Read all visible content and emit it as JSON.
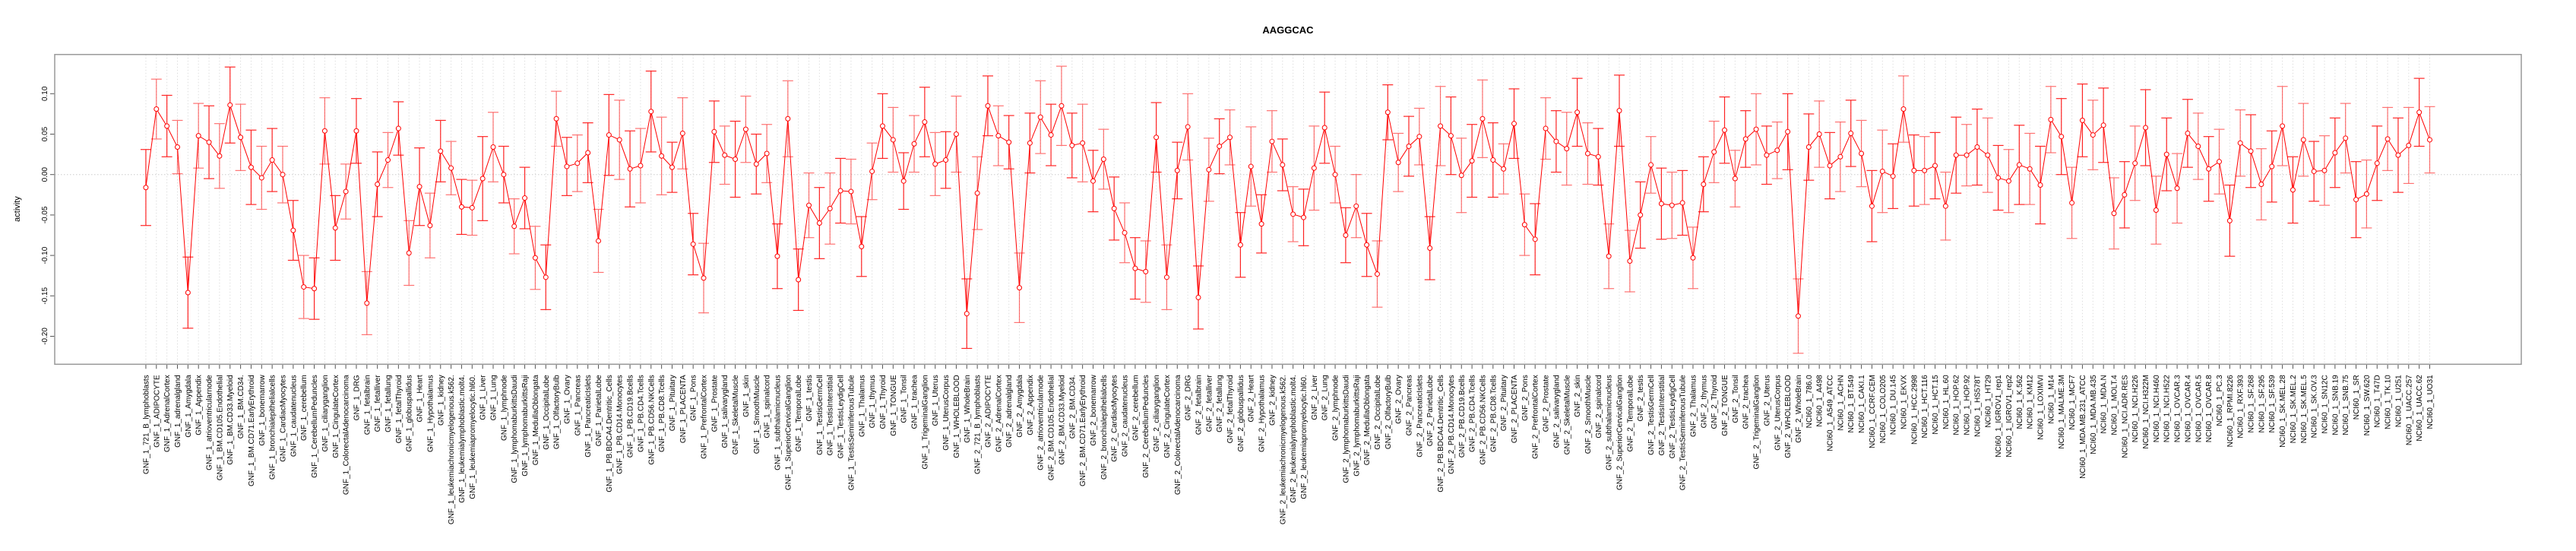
{
  "chart_data": {
    "type": "line",
    "title": "AAGGCAC",
    "xlabel": "",
    "ylabel": "activity",
    "ylim": [
      -0.2346,
      0.1485
    ],
    "xlim": [
      -7.66,
      226.7
    ],
    "yticks": [
      -0.2,
      -0.15,
      -0.1,
      -0.05,
      0.0,
      0.05,
      0.1
    ],
    "ytick_labels": [
      "-0.20",
      "-0.15",
      "-0.10",
      "-0.05",
      "0.00",
      "0.05",
      "0.10"
    ],
    "grid": "dotted vertical lines at each category; dotted horizontal line at 0",
    "legend": "none",
    "color": "#ff0000",
    "categories": [
      "GNF_1_721_B_lymphoblasts",
      "GNF_1_ADIPOCYTE",
      "GNF_1_AdrenalCortex",
      "GNF_1_adrenalgland",
      "GNF_1_Amygdala",
      "GNF_1_Appendix",
      "GNF_1_atrioventricularnode",
      "GNF_1_BM.CD105.Endothelial",
      "GNF_1_BM.CD33.Myeloid",
      "GNF_1_BM.CD34.",
      "GNF_1_BM.CD71.EarlyErythroid",
      "GNF_1_bonemarrow",
      "GNF_1_bronchialepithelialcells",
      "GNF_1_CardiacMyocytes",
      "GNF_1_caudatenucleus",
      "GNF_1_cerebellum",
      "GNF_1_CerebellumPeduncles",
      "GNF_1_ciliaryganglion",
      "GNF_1_CingulateCortex",
      "GNF_1_ColorectalAdenocarcinoma",
      "GNF_1_DRG",
      "GNF_1_fetalbrain",
      "GNF_1_fetalliver",
      "GNF_1_fetallung",
      "GNF_1_fetalThyroid",
      "GNF_1_globuspallidus",
      "GNF_1_Heart",
      "GNF_1_Hypothalamus",
      "GNF_1_kidney",
      "GNF_1_leukemiachronicmyelogenous.k562.",
      "GNF_1_leukemialymphoblastic.molt4.",
      "GNF_1_leukemiapromyelocytic.hl60.",
      "GNF_1_Liver",
      "GNF_1_Lung",
      "GNF_1_lymphnode",
      "GNF_1_lymphomaburkittsDaudi",
      "GNF_1_lymphomaburkittsRaji",
      "GNF_1_MedullaOblongata",
      "GNF_1_OccipitalLobe",
      "GNF_1_OlfactoryBulb",
      "GNF_1_Ovary",
      "GNF_1_Pancreas",
      "GNF_1_PancreaticIslets",
      "GNF_1_ParietalLobe",
      "GNF_1_PB.BDCA4.Dentritic_Cells",
      "GNF_1_PB.CD14.Monocytes",
      "GNF_1_PB.CD19.Bcells",
      "GNF_1_PB.CD4.Tcells",
      "GNF_1_PB.CD56.NKCells",
      "GNF_1_PB.CD8.Tcells",
      "GNF_1_Pituitary",
      "GNF_1_PLACENTA",
      "GNF_1_Pons",
      "GNF_1_PrefrontalCortex",
      "GNF_1_Prostate",
      "GNF_1_salivarygland",
      "GNF_1_SkeletalMuscle",
      "GNF_1_skin",
      "GNF_1_SmoothMuscle",
      "GNF_1_spinalcord",
      "GNF_1_subthalamicnucleus",
      "GNF_1_SuperiorCervicalGanglion",
      "GNF_1_TemporalLobe",
      "GNF_1_testis",
      "GNF_1_TestisGermCell",
      "GNF_1_TestisInterstitial",
      "GNF_1_TestisLeydigCell",
      "GNF_1_TestisSeminiferousTubule",
      "GNF_1_Thalamus",
      "GNF_1_thymus",
      "GNF_1_Thyroid",
      "GNF_1_TONGUE",
      "GNF_1_Tonsil",
      "GNF_1_trachea",
      "GNF_1_TrigeminalGanglion",
      "GNF_1_Uterus",
      "GNF_1_UterusCorpus",
      "GNF_1_WHOLEBLOOD",
      "GNF_1_WholeBrain",
      "GNF_2_721_B_lymphoblasts",
      "GNF_2_ADIPOCYTE",
      "GNF_2_AdrenalCortex",
      "GNF_2_adrenalgland",
      "GNF_2_Amygdala",
      "GNF_2_Appendix",
      "GNF_2_atrioventricularnode",
      "GNF_2_BM.CD105.Endothelial",
      "GNF_2_BM.CD33.Myeloid",
      "GNF_2_BM.CD34.",
      "GNF_2_BM.CD71.EarlyErythroid",
      "GNF_2_bonemarrow",
      "GNF_2_bronchialepithelialcells",
      "GNF_2_CardiacMyocytes",
      "GNF_2_caudatenucleus",
      "GNF_2_cerebellum",
      "GNF_2_CerebellumPeduncles",
      "GNF_2_ciliaryganglion",
      "GNF_2_CingulateCortex",
      "GNF_2_ColorectalAdenocarcinoma",
      "GNF_2_DRG",
      "GNF_2_fetalbrain",
      "GNF_2_fetalliver",
      "GNF_2_fetallung",
      "GNF_2_fetalThyroid",
      "GNF_2_globuspallidus",
      "GNF_2_Heart",
      "GNF_2_Hypothalamus",
      "GNF_2_kidney",
      "GNF_2_leukemiachronicmyelogenous.k562.",
      "GNF_2_leukemialymphoblastic.molt4.",
      "GNF_2_leukemiapromyelocytic.hl60.",
      "GNF_2_Liver",
      "GNF_2_Lung",
      "GNF_2_lymphnode",
      "GNF_2_lymphomaburkittsDaudi",
      "GNF_2_lymphomaburkittsRaji",
      "GNF_2_MedullaOblongata",
      "GNF_2_OccipitalLobe",
      "GNF_2_OlfactoryBulb",
      "GNF_2_Ovary",
      "GNF_2_Pancreas",
      "GNF_2_PancreaticIslets",
      "GNF_2_ParietalLobe",
      "GNF_2_PB.BDCA4.Dentritic_Cells",
      "GNF_2_PB.CD14.Monocytes",
      "GNF_2_PB.CD19.Bcells",
      "GNF_2_PB.CD4.Tcells",
      "GNF_2_PB.CD56.NKCells",
      "GNF_2_PB.CD8.Tcells",
      "GNF_2_Pituitary",
      "GNF_2_PLACENTA",
      "GNF_2_Pons",
      "GNF_2_PrefrontalCortex",
      "GNF_2_Prostate",
      "GNF_2_salivarygland",
      "GNF_2_SkeletalMuscle",
      "GNF_2_skin",
      "GNF_2_SmoothMuscle",
      "GNF_2_spinalcord",
      "GNF_2_subthalamicnucleus",
      "GNF_2_SuperiorCervicalGanglion",
      "GNF_2_TemporalLobe",
      "GNF_2_testis",
      "GNF_2_TestisGermCell",
      "GNF_2_TestisInterstitial",
      "GNF_2_TestisLeydigCell",
      "GNF_2_TestisSeminiferousTubule",
      "GNF_2_Thalamus",
      "GNF_2_thymus",
      "GNF_2_Thyroid",
      "GNF_2_TONGUE",
      "GNF_2_Tonsil",
      "GNF_2_trachea",
      "GNF_2_TrigeminalGanglion",
      "GNF_2_Uterus",
      "GNF_2_UterusCorpus",
      "GNF_2_WHOLEBLOOD",
      "GNF_2_WholeBrain",
      "NCI60_1_786.0",
      "NCI60_1_A498",
      "NCI60_1_A549_ATCC",
      "NCI60_1_ACHN",
      "NCI60_1_BT.549",
      "NCI60_1_CAKI.1",
      "NCI60_1_CCRF.CEM",
      "NCI60_1_COLO205",
      "NCI60_1_DU.145",
      "NCI60_1_EKVX",
      "NCI60_1_HCC.2998",
      "NCI60_1_HCT.116",
      "NCI60_1_HCT.15",
      "NCI60_1_HL.60",
      "NCI60_1_HOP.62",
      "NCI60_1_HOP.92",
      "NCI60_1_HS578T",
      "NCI60_1_HT29",
      "NCI60_1_IGROV1_rep1",
      "NCI60_1_IGROV1_rep2",
      "NCI60_1_K.562",
      "NCI60_1_KM12",
      "NCI60_1_LOXIMVI",
      "NCI60_1_M14",
      "NCI60_1_MALME.3M",
      "NCI60_1_MCF7",
      "NCI60_1_MDA.MB.231_ATCC",
      "NCI60_1_MDA.MB.435",
      "NCI60_1_MDA.N",
      "NCI60_1_MOLT.4",
      "NCI60_1_NCI.ADR.RES",
      "NCI60_1_NCI.H226",
      "NCI60_1_NCI.H322M",
      "NCI60_1_NCI.H460",
      "NCI60_1_NCI.H522",
      "NCI60_1_OVCAR.3",
      "NCI60_1_OVCAR.4",
      "NCI60_1_OVCAR.5",
      "NCI60_1_OVCAR.8",
      "NCI60_1_PC.3",
      "NCI60_1_RPMI.8226",
      "NCI60_1_RXF.393",
      "NCI60_1_SF.268",
      "NCI60_1_SF.295",
      "NCI60_1_SF.539",
      "NCI60_1_SK.MEL.28",
      "NCI60_1_SK.MEL.2",
      "NCI60_1_SK.MEL.5",
      "NCI60_1_SK.OV.3",
      "NCI60_1_SN12C",
      "NCI60_1_SNB.19",
      "NCI60_1_SNB.75",
      "NCI60_1_SR",
      "NCI60_1_SW.620",
      "NCI60_1_T47D",
      "NCI60_1_TK.10",
      "NCI60_1_U251",
      "NCI60_1_UACC.257",
      "NCI60_1_UACC.62",
      "NCI60_1_UO31"
    ],
    "values": [
      -0.016,
      0.081,
      0.06,
      0.034,
      -0.146,
      0.048,
      0.04,
      0.023,
      0.086,
      0.046,
      0.009,
      -0.004,
      0.018,
      0.0,
      -0.069,
      -0.139,
      -0.141,
      0.054,
      -0.066,
      -0.021,
      0.054,
      -0.159,
      -0.012,
      0.018,
      0.057,
      -0.097,
      -0.015,
      -0.063,
      0.029,
      0.008,
      -0.04,
      -0.041,
      -0.005,
      0.034,
      0.0,
      -0.064,
      -0.029,
      -0.103,
      -0.127,
      0.069,
      0.01,
      0.014,
      0.027,
      -0.082,
      0.049,
      0.043,
      0.007,
      0.011,
      0.078,
      0.023,
      0.009,
      0.051,
      -0.086,
      -0.128,
      0.053,
      0.024,
      0.019,
      0.056,
      0.013,
      0.026,
      -0.101,
      0.069,
      -0.13,
      -0.038,
      -0.06,
      -0.042,
      -0.02,
      -0.021,
      -0.089,
      0.004,
      0.06,
      0.043,
      -0.008,
      0.038,
      0.065,
      0.013,
      0.018,
      0.05,
      -0.172,
      -0.023,
      0.085,
      0.048,
      0.04,
      -0.14,
      0.039,
      0.071,
      0.049,
      0.085,
      0.036,
      0.039,
      -0.008,
      0.019,
      -0.042,
      -0.072,
      -0.116,
      -0.12,
      0.046,
      -0.127,
      0.005,
      0.059,
      -0.152,
      0.006,
      0.035,
      0.046,
      -0.087,
      0.01,
      -0.061,
      0.041,
      0.012,
      -0.049,
      -0.053,
      0.008,
      0.058,
      0.0,
      -0.075,
      -0.039,
      -0.087,
      -0.123,
      0.077,
      0.015,
      0.035,
      0.047,
      -0.091,
      0.06,
      0.048,
      -0.001,
      0.017,
      0.069,
      0.018,
      0.007,
      0.063,
      -0.062,
      -0.08,
      0.057,
      0.041,
      0.032,
      0.077,
      0.026,
      0.022,
      -0.101,
      0.079,
      -0.107,
      -0.05,
      0.012,
      -0.036,
      -0.038,
      -0.035,
      -0.103,
      -0.012,
      0.028,
      0.055,
      -0.005,
      0.044,
      0.056,
      0.024,
      0.03,
      0.053,
      -0.175,
      0.034,
      0.05,
      0.011,
      0.022,
      0.051,
      0.026,
      -0.039,
      0.004,
      -0.002,
      0.081,
      0.005,
      0.005,
      0.011,
      -0.039,
      0.024,
      0.024,
      0.034,
      0.024,
      -0.004,
      -0.008,
      0.012,
      0.007,
      -0.013,
      0.068,
      0.047,
      -0.035,
      0.067,
      0.049,
      0.061,
      -0.048,
      -0.025,
      0.014,
      0.058,
      -0.044,
      0.025,
      -0.017,
      0.051,
      0.035,
      0.007,
      0.016,
      -0.057,
      0.039,
      0.029,
      -0.012,
      0.01,
      0.06,
      -0.019,
      0.043,
      0.004,
      0.005,
      0.027,
      0.045,
      -0.031,
      -0.024,
      0.014,
      0.044,
      0.024,
      0.036,
      0.077,
      0.043
    ],
    "errors": [
      0.047,
      0.037,
      0.038,
      0.033,
      0.044,
      0.04,
      0.045,
      0.04,
      0.047,
      0.041,
      0.046,
      0.039,
      0.039,
      0.035,
      0.037,
      0.039,
      0.038,
      0.041,
      0.04,
      0.034,
      0.04,
      0.039,
      0.04,
      0.034,
      0.033,
      0.04,
      0.048,
      0.04,
      0.038,
      0.033,
      0.034,
      0.034,
      0.052,
      0.043,
      0.035,
      0.034,
      0.038,
      0.039,
      0.04,
      0.034,
      0.036,
      0.035,
      0.037,
      0.039,
      0.05,
      0.049,
      0.047,
      0.046,
      0.05,
      0.048,
      0.031,
      0.044,
      0.038,
      0.043,
      0.038,
      0.036,
      0.047,
      0.041,
      0.037,
      0.036,
      0.04,
      0.047,
      0.038,
      0.04,
      0.044,
      0.044,
      0.04,
      0.04,
      0.037,
      0.035,
      0.04,
      0.04,
      0.035,
      0.035,
      0.043,
      0.039,
      0.035,
      0.047,
      0.043,
      0.045,
      0.037,
      0.037,
      0.033,
      0.043,
      0.037,
      0.045,
      0.038,
      0.049,
      0.04,
      0.048,
      0.038,
      0.037,
      0.039,
      0.037,
      0.038,
      0.038,
      0.043,
      0.04,
      0.035,
      0.041,
      0.039,
      0.039,
      0.034,
      0.034,
      0.04,
      0.049,
      0.036,
      0.038,
      0.032,
      0.034,
      0.035,
      0.052,
      0.044,
      0.035,
      0.034,
      0.039,
      0.039,
      0.041,
      0.034,
      0.036,
      0.037,
      0.035,
      0.039,
      0.049,
      0.048,
      0.046,
      0.045,
      0.048,
      0.046,
      0.031,
      0.043,
      0.038,
      0.044,
      0.038,
      0.038,
      0.045,
      0.042,
      0.038,
      0.035,
      0.04,
      0.044,
      0.038,
      0.041,
      0.035,
      0.044,
      0.041,
      0.04,
      0.038,
      0.034,
      0.038,
      0.041,
      0.035,
      0.035,
      0.044,
      0.036,
      0.035,
      0.047,
      0.046,
      0.041,
      0.041,
      0.041,
      0.043,
      0.041,
      0.041,
      0.044,
      0.051,
      0.04,
      0.041,
      0.044,
      0.042,
      0.041,
      0.042,
      0.047,
      0.038,
      0.047,
      0.046,
      0.04,
      0.039,
      0.049,
      0.044,
      0.048,
      0.041,
      0.047,
      0.044,
      0.045,
      0.043,
      0.046,
      0.044,
      0.041,
      0.046,
      0.047,
      0.042,
      0.045,
      0.043,
      0.042,
      0.041,
      0.04,
      0.04,
      0.044,
      0.041,
      0.045,
      0.044,
      0.044,
      0.049,
      0.041,
      0.045,
      0.037,
      0.043,
      0.043,
      0.043,
      0.047,
      0.042,
      0.046,
      0.039,
      0.046,
      0.047,
      0.042,
      0.041
    ]
  }
}
